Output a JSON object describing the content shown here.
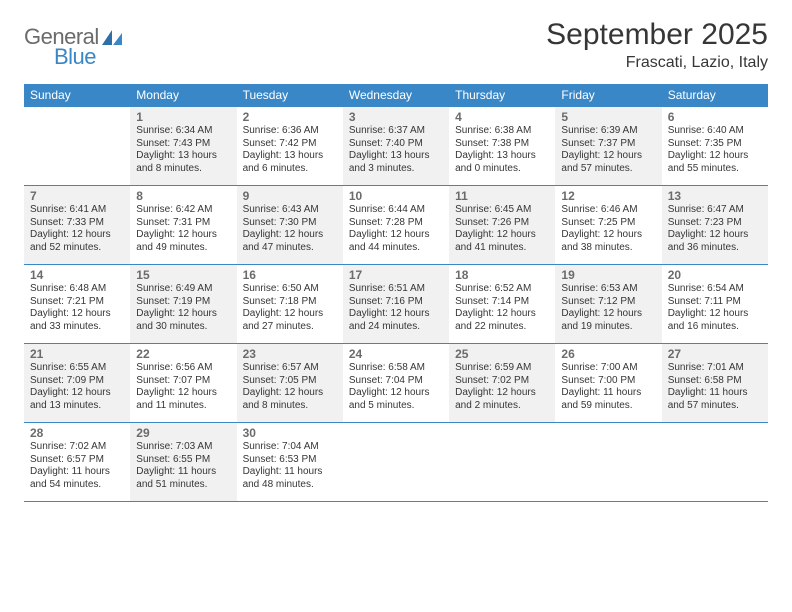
{
  "logo": {
    "word1": "General",
    "word2": "Blue"
  },
  "header": {
    "month_title": "September 2025",
    "location": "Frascati, Lazio, Italy"
  },
  "colors": {
    "header_bar": "#3a87c7",
    "row_border": "#3a87c7",
    "shaded_cell": "#f1f1f1",
    "text": "#363636",
    "muted": "#6b6b6b",
    "bg": "#ffffff"
  },
  "dow": [
    "Sunday",
    "Monday",
    "Tuesday",
    "Wednesday",
    "Thursday",
    "Friday",
    "Saturday"
  ],
  "weeks": [
    [
      {
        "n": "",
        "shaded": false,
        "lines": []
      },
      {
        "n": "1",
        "shaded": true,
        "lines": [
          "Sunrise: 6:34 AM",
          "Sunset: 7:43 PM",
          "Daylight: 13 hours",
          "and 8 minutes."
        ]
      },
      {
        "n": "2",
        "shaded": false,
        "lines": [
          "Sunrise: 6:36 AM",
          "Sunset: 7:42 PM",
          "Daylight: 13 hours",
          "and 6 minutes."
        ]
      },
      {
        "n": "3",
        "shaded": true,
        "lines": [
          "Sunrise: 6:37 AM",
          "Sunset: 7:40 PM",
          "Daylight: 13 hours",
          "and 3 minutes."
        ]
      },
      {
        "n": "4",
        "shaded": false,
        "lines": [
          "Sunrise: 6:38 AM",
          "Sunset: 7:38 PM",
          "Daylight: 13 hours",
          "and 0 minutes."
        ]
      },
      {
        "n": "5",
        "shaded": true,
        "lines": [
          "Sunrise: 6:39 AM",
          "Sunset: 7:37 PM",
          "Daylight: 12 hours",
          "and 57 minutes."
        ]
      },
      {
        "n": "6",
        "shaded": false,
        "lines": [
          "Sunrise: 6:40 AM",
          "Sunset: 7:35 PM",
          "Daylight: 12 hours",
          "and 55 minutes."
        ]
      }
    ],
    [
      {
        "n": "7",
        "shaded": true,
        "lines": [
          "Sunrise: 6:41 AM",
          "Sunset: 7:33 PM",
          "Daylight: 12 hours",
          "and 52 minutes."
        ]
      },
      {
        "n": "8",
        "shaded": false,
        "lines": [
          "Sunrise: 6:42 AM",
          "Sunset: 7:31 PM",
          "Daylight: 12 hours",
          "and 49 minutes."
        ]
      },
      {
        "n": "9",
        "shaded": true,
        "lines": [
          "Sunrise: 6:43 AM",
          "Sunset: 7:30 PM",
          "Daylight: 12 hours",
          "and 47 minutes."
        ]
      },
      {
        "n": "10",
        "shaded": false,
        "lines": [
          "Sunrise: 6:44 AM",
          "Sunset: 7:28 PM",
          "Daylight: 12 hours",
          "and 44 minutes."
        ]
      },
      {
        "n": "11",
        "shaded": true,
        "lines": [
          "Sunrise: 6:45 AM",
          "Sunset: 7:26 PM",
          "Daylight: 12 hours",
          "and 41 minutes."
        ]
      },
      {
        "n": "12",
        "shaded": false,
        "lines": [
          "Sunrise: 6:46 AM",
          "Sunset: 7:25 PM",
          "Daylight: 12 hours",
          "and 38 minutes."
        ]
      },
      {
        "n": "13",
        "shaded": true,
        "lines": [
          "Sunrise: 6:47 AM",
          "Sunset: 7:23 PM",
          "Daylight: 12 hours",
          "and 36 minutes."
        ]
      }
    ],
    [
      {
        "n": "14",
        "shaded": false,
        "lines": [
          "Sunrise: 6:48 AM",
          "Sunset: 7:21 PM",
          "Daylight: 12 hours",
          "and 33 minutes."
        ]
      },
      {
        "n": "15",
        "shaded": true,
        "lines": [
          "Sunrise: 6:49 AM",
          "Sunset: 7:19 PM",
          "Daylight: 12 hours",
          "and 30 minutes."
        ]
      },
      {
        "n": "16",
        "shaded": false,
        "lines": [
          "Sunrise: 6:50 AM",
          "Sunset: 7:18 PM",
          "Daylight: 12 hours",
          "and 27 minutes."
        ]
      },
      {
        "n": "17",
        "shaded": true,
        "lines": [
          "Sunrise: 6:51 AM",
          "Sunset: 7:16 PM",
          "Daylight: 12 hours",
          "and 24 minutes."
        ]
      },
      {
        "n": "18",
        "shaded": false,
        "lines": [
          "Sunrise: 6:52 AM",
          "Sunset: 7:14 PM",
          "Daylight: 12 hours",
          "and 22 minutes."
        ]
      },
      {
        "n": "19",
        "shaded": true,
        "lines": [
          "Sunrise: 6:53 AM",
          "Sunset: 7:12 PM",
          "Daylight: 12 hours",
          "and 19 minutes."
        ]
      },
      {
        "n": "20",
        "shaded": false,
        "lines": [
          "Sunrise: 6:54 AM",
          "Sunset: 7:11 PM",
          "Daylight: 12 hours",
          "and 16 minutes."
        ]
      }
    ],
    [
      {
        "n": "21",
        "shaded": true,
        "lines": [
          "Sunrise: 6:55 AM",
          "Sunset: 7:09 PM",
          "Daylight: 12 hours",
          "and 13 minutes."
        ]
      },
      {
        "n": "22",
        "shaded": false,
        "lines": [
          "Sunrise: 6:56 AM",
          "Sunset: 7:07 PM",
          "Daylight: 12 hours",
          "and 11 minutes."
        ]
      },
      {
        "n": "23",
        "shaded": true,
        "lines": [
          "Sunrise: 6:57 AM",
          "Sunset: 7:05 PM",
          "Daylight: 12 hours",
          "and 8 minutes."
        ]
      },
      {
        "n": "24",
        "shaded": false,
        "lines": [
          "Sunrise: 6:58 AM",
          "Sunset: 7:04 PM",
          "Daylight: 12 hours",
          "and 5 minutes."
        ]
      },
      {
        "n": "25",
        "shaded": true,
        "lines": [
          "Sunrise: 6:59 AM",
          "Sunset: 7:02 PM",
          "Daylight: 12 hours",
          "and 2 minutes."
        ]
      },
      {
        "n": "26",
        "shaded": false,
        "lines": [
          "Sunrise: 7:00 AM",
          "Sunset: 7:00 PM",
          "Daylight: 11 hours",
          "and 59 minutes."
        ]
      },
      {
        "n": "27",
        "shaded": true,
        "lines": [
          "Sunrise: 7:01 AM",
          "Sunset: 6:58 PM",
          "Daylight: 11 hours",
          "and 57 minutes."
        ]
      }
    ],
    [
      {
        "n": "28",
        "shaded": false,
        "lines": [
          "Sunrise: 7:02 AM",
          "Sunset: 6:57 PM",
          "Daylight: 11 hours",
          "and 54 minutes."
        ]
      },
      {
        "n": "29",
        "shaded": true,
        "lines": [
          "Sunrise: 7:03 AM",
          "Sunset: 6:55 PM",
          "Daylight: 11 hours",
          "and 51 minutes."
        ]
      },
      {
        "n": "30",
        "shaded": false,
        "lines": [
          "Sunrise: 7:04 AM",
          "Sunset: 6:53 PM",
          "Daylight: 11 hours",
          "and 48 minutes."
        ]
      },
      {
        "n": "",
        "shaded": false,
        "lines": []
      },
      {
        "n": "",
        "shaded": false,
        "lines": []
      },
      {
        "n": "",
        "shaded": false,
        "lines": []
      },
      {
        "n": "",
        "shaded": false,
        "lines": []
      }
    ]
  ]
}
